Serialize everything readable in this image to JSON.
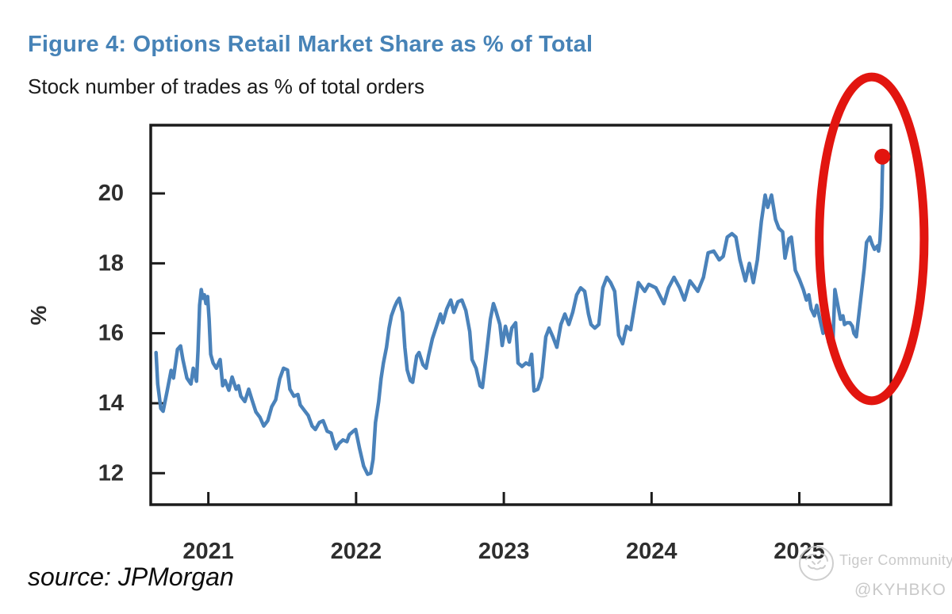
{
  "header": {},
  "chart_data": {
    "type": "line",
    "title": "Figure 4: Options Retail Market Share as % of Total",
    "subtitle": "Stock number of trades as % of total orders",
    "ylabel": "%",
    "xlabel": "",
    "grid": false,
    "legend": "none",
    "xlim": [
      2020.61,
      2025.62
    ],
    "ylim": [
      11.1,
      21.95
    ],
    "x_ticks": [
      2021,
      2022,
      2023,
      2024,
      2025
    ],
    "y_ticks": [
      12,
      14,
      16,
      18,
      20
    ],
    "series": [
      {
        "name": "Options retail market share (% of total)",
        "color": "#4a82ba",
        "points": [
          [
            2020.646,
            15.45
          ],
          [
            2020.657,
            14.55
          ],
          [
            2020.678,
            13.85
          ],
          [
            2020.694,
            13.77
          ],
          [
            2020.721,
            14.35
          ],
          [
            2020.748,
            14.94
          ],
          [
            2020.764,
            14.72
          ],
          [
            2020.791,
            15.54
          ],
          [
            2020.812,
            15.64
          ],
          [
            2020.828,
            15.24
          ],
          [
            2020.855,
            14.72
          ],
          [
            2020.882,
            14.55
          ],
          [
            2020.898,
            15.0
          ],
          [
            2020.92,
            14.63
          ],
          [
            2020.93,
            15.5
          ],
          [
            2020.941,
            16.8
          ],
          [
            2020.952,
            17.25
          ],
          [
            2020.962,
            17.0
          ],
          [
            2020.973,
            17.1
          ],
          [
            2020.984,
            16.85
          ],
          [
            2020.995,
            17.05
          ],
          [
            2021.005,
            16.4
          ],
          [
            2021.016,
            15.4
          ],
          [
            2021.032,
            15.15
          ],
          [
            2021.054,
            15.0
          ],
          [
            2021.08,
            15.25
          ],
          [
            2021.097,
            14.5
          ],
          [
            2021.113,
            14.65
          ],
          [
            2021.139,
            14.37
          ],
          [
            2021.161,
            14.75
          ],
          [
            2021.188,
            14.4
          ],
          [
            2021.204,
            14.5
          ],
          [
            2021.22,
            14.2
          ],
          [
            2021.247,
            14.05
          ],
          [
            2021.273,
            14.4
          ],
          [
            2021.295,
            14.1
          ],
          [
            2021.322,
            13.75
          ],
          [
            2021.349,
            13.6
          ],
          [
            2021.375,
            13.35
          ],
          [
            2021.402,
            13.5
          ],
          [
            2021.429,
            13.9
          ],
          [
            2021.456,
            14.1
          ],
          [
            2021.483,
            14.7
          ],
          [
            2021.509,
            15.0
          ],
          [
            2021.536,
            14.95
          ],
          [
            2021.552,
            14.4
          ],
          [
            2021.579,
            14.2
          ],
          [
            2021.606,
            14.25
          ],
          [
            2021.622,
            13.95
          ],
          [
            2021.649,
            13.8
          ],
          [
            2021.676,
            13.65
          ],
          [
            2021.702,
            13.35
          ],
          [
            2021.724,
            13.25
          ],
          [
            2021.751,
            13.45
          ],
          [
            2021.777,
            13.5
          ],
          [
            2021.804,
            13.2
          ],
          [
            2021.831,
            13.15
          ],
          [
            2021.847,
            12.9
          ],
          [
            2021.863,
            12.7
          ],
          [
            2021.885,
            12.85
          ],
          [
            2021.911,
            12.95
          ],
          [
            2021.938,
            12.9
          ],
          [
            2021.954,
            13.1
          ],
          [
            2021.981,
            13.2
          ],
          [
            2021.997,
            13.25
          ],
          [
            2022.024,
            12.7
          ],
          [
            2022.051,
            12.2
          ],
          [
            2022.078,
            11.97
          ],
          [
            2022.099,
            12.0
          ],
          [
            2022.115,
            12.4
          ],
          [
            2022.131,
            13.45
          ],
          [
            2022.153,
            14.05
          ],
          [
            2022.169,
            14.7
          ],
          [
            2022.185,
            15.15
          ],
          [
            2022.206,
            15.6
          ],
          [
            2022.223,
            16.15
          ],
          [
            2022.239,
            16.5
          ],
          [
            2022.26,
            16.75
          ],
          [
            2022.276,
            16.9
          ],
          [
            2022.292,
            17.0
          ],
          [
            2022.314,
            16.6
          ],
          [
            2022.33,
            15.6
          ],
          [
            2022.346,
            14.95
          ],
          [
            2022.367,
            14.65
          ],
          [
            2022.383,
            14.6
          ],
          [
            2022.41,
            15.35
          ],
          [
            2022.426,
            15.45
          ],
          [
            2022.453,
            15.1
          ],
          [
            2022.474,
            15.0
          ],
          [
            2022.49,
            15.35
          ],
          [
            2022.517,
            15.85
          ],
          [
            2022.544,
            16.2
          ],
          [
            2022.571,
            16.55
          ],
          [
            2022.587,
            16.3
          ],
          [
            2022.614,
            16.7
          ],
          [
            2022.641,
            16.95
          ],
          [
            2022.662,
            16.6
          ],
          [
            2022.689,
            16.9
          ],
          [
            2022.716,
            16.95
          ],
          [
            2022.743,
            16.65
          ],
          [
            2022.769,
            16.05
          ],
          [
            2022.785,
            15.25
          ],
          [
            2022.812,
            15.0
          ],
          [
            2022.839,
            14.5
          ],
          [
            2022.855,
            14.45
          ],
          [
            2022.882,
            15.4
          ],
          [
            2022.909,
            16.4
          ],
          [
            2022.93,
            16.85
          ],
          [
            2022.946,
            16.65
          ],
          [
            2022.973,
            16.25
          ],
          [
            2022.989,
            15.65
          ],
          [
            2023.011,
            16.2
          ],
          [
            2023.037,
            15.75
          ],
          [
            2023.054,
            16.15
          ],
          [
            2023.08,
            16.3
          ],
          [
            2023.096,
            15.15
          ],
          [
            2023.123,
            15.05
          ],
          [
            2023.15,
            15.15
          ],
          [
            2023.172,
            15.1
          ],
          [
            2023.188,
            15.4
          ],
          [
            2023.204,
            14.35
          ],
          [
            2023.23,
            14.4
          ],
          [
            2023.257,
            14.75
          ],
          [
            2023.284,
            15.9
          ],
          [
            2023.306,
            16.15
          ],
          [
            2023.332,
            15.9
          ],
          [
            2023.359,
            15.6
          ],
          [
            2023.386,
            16.25
          ],
          [
            2023.413,
            16.55
          ],
          [
            2023.44,
            16.25
          ],
          [
            2023.466,
            16.6
          ],
          [
            2023.493,
            17.1
          ],
          [
            2023.52,
            17.3
          ],
          [
            2023.547,
            17.2
          ],
          [
            2023.573,
            16.55
          ],
          [
            2023.59,
            16.25
          ],
          [
            2023.616,
            16.15
          ],
          [
            2023.643,
            16.25
          ],
          [
            2023.67,
            17.3
          ],
          [
            2023.697,
            17.6
          ],
          [
            2023.723,
            17.45
          ],
          [
            2023.75,
            17.2
          ],
          [
            2023.777,
            15.95
          ],
          [
            2023.804,
            15.7
          ],
          [
            2023.831,
            16.2
          ],
          [
            2023.858,
            16.1
          ],
          [
            2023.911,
            17.45
          ],
          [
            2023.954,
            17.2
          ],
          [
            2023.981,
            17.4
          ],
          [
            2024.029,
            17.3
          ],
          [
            2024.083,
            16.85
          ],
          [
            2024.115,
            17.3
          ],
          [
            2024.152,
            17.6
          ],
          [
            2024.19,
            17.3
          ],
          [
            2024.222,
            16.95
          ],
          [
            2024.26,
            17.5
          ],
          [
            2024.313,
            17.2
          ],
          [
            2024.351,
            17.6
          ],
          [
            2024.383,
            18.3
          ],
          [
            2024.421,
            18.35
          ],
          [
            2024.458,
            18.1
          ],
          [
            2024.485,
            18.2
          ],
          [
            2024.512,
            18.75
          ],
          [
            2024.544,
            18.85
          ],
          [
            2024.571,
            18.75
          ],
          [
            2024.598,
            18.1
          ],
          [
            2024.635,
            17.5
          ],
          [
            2024.662,
            18.0
          ],
          [
            2024.689,
            17.45
          ],
          [
            2024.716,
            18.1
          ],
          [
            2024.743,
            19.2
          ],
          [
            2024.769,
            19.95
          ],
          [
            2024.786,
            19.6
          ],
          [
            2024.812,
            19.95
          ],
          [
            2024.839,
            19.25
          ],
          [
            2024.861,
            19.0
          ],
          [
            2024.887,
            18.9
          ],
          [
            2024.903,
            18.15
          ],
          [
            2024.93,
            18.7
          ],
          [
            2024.946,
            18.75
          ],
          [
            2024.973,
            17.8
          ],
          [
            2025.0,
            17.55
          ],
          [
            2025.027,
            17.25
          ],
          [
            2025.048,
            16.95
          ],
          [
            2025.064,
            17.1
          ],
          [
            2025.08,
            16.7
          ],
          [
            2025.102,
            16.5
          ],
          [
            2025.118,
            16.8
          ],
          [
            2025.134,
            16.5
          ],
          [
            2025.161,
            16.0
          ],
          [
            2025.182,
            16.3
          ],
          [
            2025.198,
            15.75
          ],
          [
            2025.225,
            15.45
          ],
          [
            2025.241,
            17.25
          ],
          [
            2025.268,
            16.65
          ],
          [
            2025.279,
            16.4
          ],
          [
            2025.295,
            16.5
          ],
          [
            2025.306,
            16.25
          ],
          [
            2025.322,
            16.3
          ],
          [
            2025.343,
            16.3
          ],
          [
            2025.359,
            16.2
          ],
          [
            2025.37,
            16.0
          ],
          [
            2025.386,
            15.9
          ],
          [
            2025.423,
            17.25
          ],
          [
            2025.439,
            17.85
          ],
          [
            2025.455,
            18.6
          ],
          [
            2025.477,
            18.75
          ],
          [
            2025.493,
            18.55
          ],
          [
            2025.509,
            18.4
          ],
          [
            2025.53,
            18.5
          ],
          [
            2025.536,
            18.35
          ],
          [
            2025.546,
            18.65
          ],
          [
            2025.557,
            19.6
          ],
          [
            2025.562,
            20.6
          ],
          [
            2025.565,
            21.0
          ]
        ]
      }
    ],
    "end_point": {
      "x": 2025.562,
      "y": 21.05,
      "color": "#e2150f",
      "radius": 10
    },
    "annotation_ellipse": {
      "cx": 2025.49,
      "cy": 18.7,
      "rx_years": 0.355,
      "ry_values": 4.63,
      "color": "#e2150f",
      "stroke_width": 11
    },
    "axis_color": "#1b1b1b",
    "tick_label_color": "#2e2e2e"
  },
  "footer": {
    "source": "source: JPMorgan"
  },
  "watermark": {
    "brand": "Tiger Community",
    "handle": "@KYHBKO"
  }
}
